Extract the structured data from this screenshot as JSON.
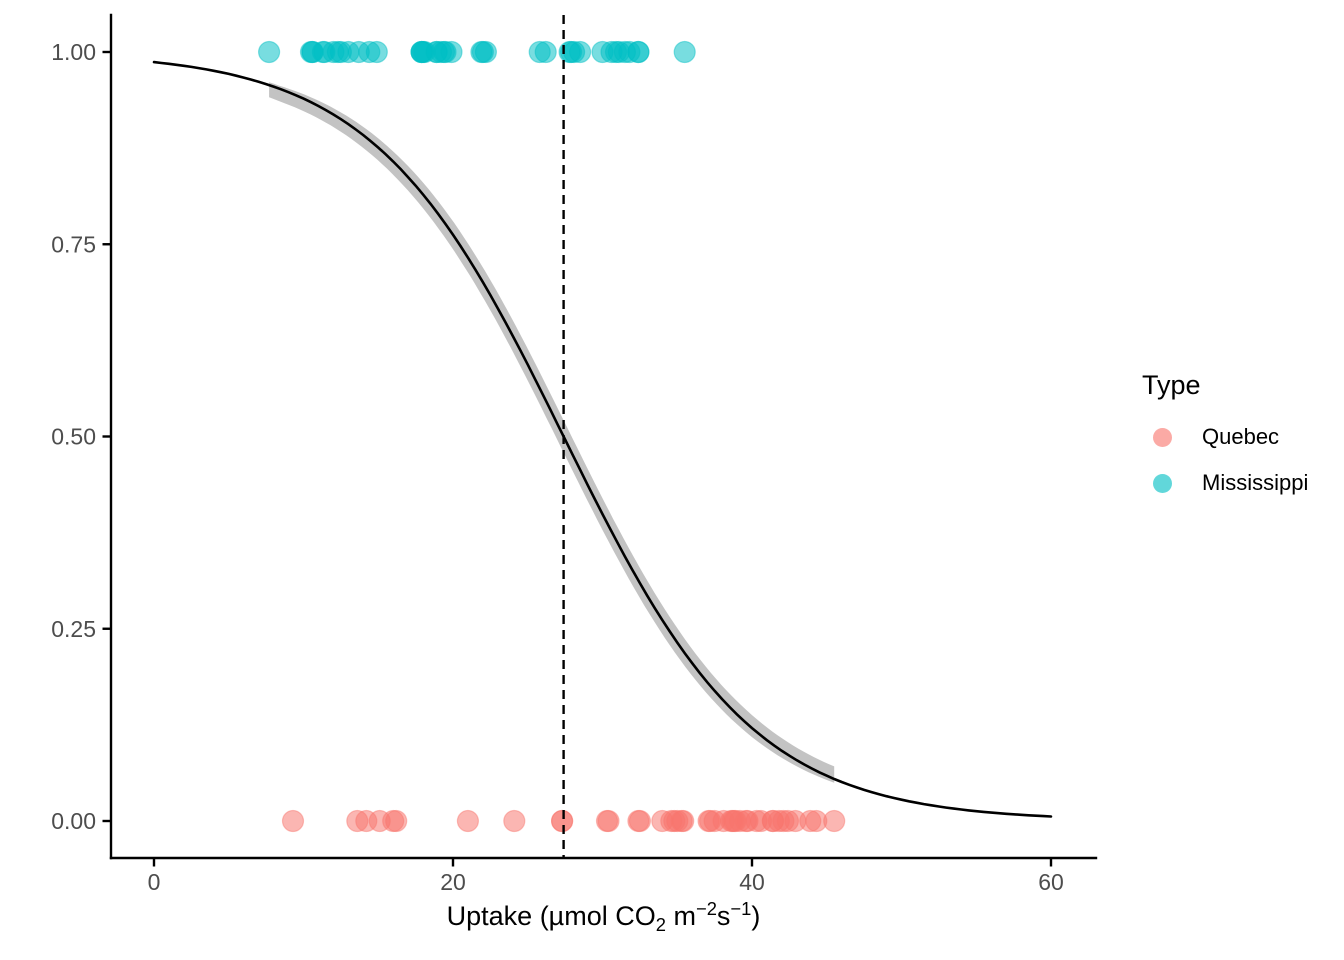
{
  "figure": {
    "background": "#FFFFFF"
  },
  "chart_data": {
    "type": "scatter",
    "title": "",
    "xlabel": "Uptake (µmol CO2 m−2s−1)",
    "xlabel_segments": [
      {
        "text": "Uptake (µmol CO",
        "script": "normal"
      },
      {
        "text": "2",
        "script": "sub"
      },
      {
        "text": " m",
        "script": "normal"
      },
      {
        "text": "−2",
        "script": "sup"
      },
      {
        "text": "s",
        "script": "normal"
      },
      {
        "text": "−1",
        "script": "sup"
      },
      {
        "text": ")",
        "script": "normal"
      }
    ],
    "ylabel": "",
    "xlim": [
      0,
      60
    ],
    "ylim": [
      0,
      1
    ],
    "x_tick_values": [
      0,
      20,
      40,
      60
    ],
    "x_tick_labels": [
      "0",
      "20",
      "40",
      "60"
    ],
    "y_tick_values": [
      0,
      0.25,
      0.5,
      0.75,
      1
    ],
    "y_tick_labels": [
      "0.00",
      "0.25",
      "0.50",
      "0.75",
      "1.00"
    ],
    "axis_text_color": "#4D4D4D",
    "axis_line_color": "#000000",
    "series": [
      {
        "name": "Quebec",
        "color": "#F8766D",
        "y_level": 0,
        "x_values": [
          16.0,
          30.4,
          34.8,
          37.2,
          35.3,
          39.2,
          39.7,
          13.6,
          27.3,
          37.1,
          41.8,
          40.6,
          41.4,
          44.3,
          16.2,
          32.4,
          40.3,
          42.1,
          42.9,
          43.9,
          45.5,
          14.2,
          24.1,
          30.3,
          34.6,
          32.5,
          35.4,
          38.7,
          9.3,
          27.3,
          35.0,
          38.8,
          38.6,
          37.5,
          42.4,
          15.1,
          21.0,
          38.1,
          34.0,
          38.9,
          39.6,
          41.4
        ]
      },
      {
        "name": "Mississippi",
        "color": "#00BFC4",
        "y_level": 1,
        "x_values": [
          10.6,
          19.2,
          26.2,
          30.0,
          30.9,
          32.4,
          35.5,
          12.0,
          22.0,
          30.6,
          31.8,
          32.4,
          31.1,
          31.5,
          11.3,
          19.4,
          25.8,
          27.9,
          28.5,
          28.1,
          27.8,
          10.5,
          14.9,
          18.1,
          18.9,
          19.5,
          22.2,
          21.9,
          7.7,
          11.4,
          12.3,
          13.0,
          12.5,
          13.7,
          14.4,
          10.6,
          18.0,
          17.9,
          17.9,
          17.9,
          18.9,
          19.9
        ]
      }
    ],
    "fit_curve": {
      "model": "logistic",
      "midpoint": 27.4,
      "scale": 6.35,
      "x_range": [
        0,
        60
      ],
      "color": "#000000"
    },
    "confidence_band": {
      "x_range": [
        7.7,
        45.5
      ],
      "color": "#BDBDBD"
    },
    "vline": {
      "x": 27.4,
      "style": "dashed",
      "color": "#000000"
    },
    "legend": {
      "title": "Type",
      "position": "right",
      "items": [
        {
          "label": "Quebec",
          "color": "#F8766D"
        },
        {
          "label": "Mississippi",
          "color": "#00BFC4"
        }
      ]
    }
  }
}
